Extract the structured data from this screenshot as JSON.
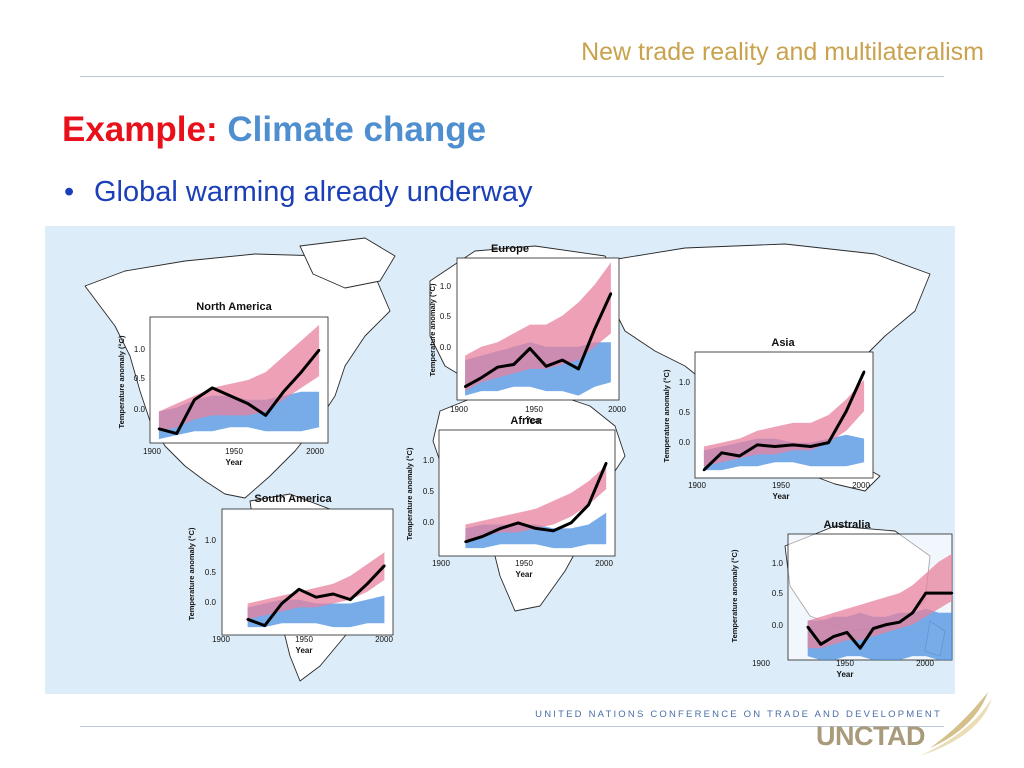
{
  "header": {
    "title": "New trade reality and multilateralism"
  },
  "slide": {
    "title_prefix": "Example:",
    "title_topic": "Climate change",
    "bullet": "Global warming already underway"
  },
  "footer": {
    "org_text": "UNITED NATIONS CONFERENCE ON TRADE AND DEVELOPMENT",
    "logo": "UNCTAD"
  },
  "colors": {
    "header": "#c9a24e",
    "title_prefix": "#e8101a",
    "title_topic": "#4f8fd0",
    "bullet": "#1a3fb8",
    "ocean": "#dcecf8",
    "land": "#ffffff",
    "observed": "#000000",
    "natural_band": "#4a90e2",
    "natural_and_human_band": "#e8829e"
  },
  "chart_data": [
    {
      "type": "line",
      "title": "Europe",
      "xlabel": "Year",
      "ylabel": "Temperature anomaly (°C)",
      "xlim": [
        1900,
        2000
      ],
      "ylim": [
        -0.3,
        1.3
      ],
      "x_ticks": [
        "1900",
        "1950",
        "2000"
      ],
      "y_ticks": [
        "0.0",
        "0.5",
        "1.0"
      ],
      "x": [
        1905,
        1915,
        1925,
        1935,
        1945,
        1955,
        1965,
        1975,
        1985,
        1995
      ],
      "observed": [
        -0.15,
        -0.05,
        0.07,
        0.1,
        0.28,
        0.08,
        0.15,
        0.05,
        0.5,
        0.9
      ],
      "natural_band_low": [
        -0.25,
        -0.2,
        -0.2,
        -0.15,
        -0.15,
        -0.2,
        -0.2,
        -0.25,
        -0.15,
        -0.1
      ],
      "natural_band_high": [
        0.15,
        0.2,
        0.25,
        0.3,
        0.35,
        0.3,
        0.3,
        0.3,
        0.35,
        0.35
      ],
      "combined_band_low": [
        -0.2,
        -0.1,
        -0.05,
        0.0,
        0.05,
        0.05,
        0.1,
        0.15,
        0.3,
        0.45
      ],
      "combined_band_high": [
        0.2,
        0.3,
        0.35,
        0.45,
        0.55,
        0.55,
        0.65,
        0.8,
        1.0,
        1.25
      ]
    },
    {
      "type": "line",
      "title": "North America",
      "xlabel": "Year",
      "ylabel": "Temperature anomaly (°C)",
      "xlim": [
        1900,
        2000
      ],
      "ylim": [
        -0.3,
        1.3
      ],
      "x_ticks": [
        "1900",
        "1950",
        "2000"
      ],
      "y_ticks": [
        "0.0",
        "0.5",
        "1.0"
      ],
      "x": [
        1905,
        1915,
        1925,
        1935,
        1945,
        1955,
        1965,
        1975,
        1985,
        1995
      ],
      "observed": [
        -0.12,
        -0.18,
        0.25,
        0.4,
        0.3,
        0.2,
        0.05,
        0.35,
        0.6,
        0.88
      ],
      "natural_band_low": [
        -0.25,
        -0.2,
        -0.15,
        -0.15,
        -0.1,
        -0.1,
        -0.15,
        -0.15,
        -0.15,
        -0.1
      ],
      "natural_band_high": [
        0.1,
        0.15,
        0.25,
        0.3,
        0.3,
        0.25,
        0.25,
        0.3,
        0.35,
        0.35
      ],
      "combined_band_low": [
        -0.15,
        -0.1,
        0.0,
        0.05,
        0.05,
        0.05,
        0.1,
        0.25,
        0.4,
        0.55
      ],
      "combined_band_high": [
        0.1,
        0.2,
        0.3,
        0.4,
        0.45,
        0.5,
        0.6,
        0.8,
        1.0,
        1.2
      ]
    },
    {
      "type": "line",
      "title": "Asia",
      "xlabel": "Year",
      "ylabel": "Temperature anomaly (°C)",
      "xlim": [
        1900,
        2000
      ],
      "ylim": [
        -0.3,
        1.3
      ],
      "x_ticks": [
        "1900",
        "1950",
        "2000"
      ],
      "y_ticks": [
        "0.0",
        "0.5",
        "1.0"
      ],
      "x": [
        1905,
        1915,
        1925,
        1935,
        1945,
        1955,
        1965,
        1975,
        1985,
        1995
      ],
      "observed": [
        -0.2,
        0.02,
        -0.02,
        0.12,
        0.1,
        0.12,
        0.1,
        0.15,
        0.55,
        1.05
      ],
      "natural_band_low": [
        -0.2,
        -0.2,
        -0.15,
        -0.15,
        -0.1,
        -0.1,
        -0.15,
        -0.15,
        -0.15,
        -0.1
      ],
      "natural_band_high": [
        0.05,
        0.1,
        0.15,
        0.2,
        0.2,
        0.15,
        0.15,
        0.2,
        0.25,
        0.2
      ],
      "combined_band_low": [
        -0.15,
        -0.1,
        -0.05,
        0.0,
        0.0,
        0.05,
        0.05,
        0.15,
        0.3,
        0.55
      ],
      "combined_band_high": [
        0.1,
        0.15,
        0.2,
        0.3,
        0.35,
        0.4,
        0.4,
        0.5,
        0.7,
        0.95
      ]
    },
    {
      "type": "line",
      "title": "Africa",
      "xlabel": "Year",
      "ylabel": "Temperature anomaly (°C)",
      "xlim": [
        1900,
        2000
      ],
      "ylim": [
        -0.3,
        1.3
      ],
      "x_ticks": [
        "1900",
        "1950",
        "2000"
      ],
      "y_ticks": [
        "0.0",
        "0.5",
        "1.0"
      ],
      "x": [
        1915,
        1925,
        1935,
        1945,
        1955,
        1965,
        1975,
        1985,
        1995
      ],
      "observed": [
        -0.12,
        -0.05,
        0.05,
        0.12,
        0.05,
        0.02,
        0.12,
        0.35,
        0.88
      ],
      "natural_band_low": [
        -0.2,
        -0.2,
        -0.15,
        -0.15,
        -0.15,
        -0.2,
        -0.2,
        -0.15,
        -0.15
      ],
      "natural_band_high": [
        0.05,
        0.1,
        0.1,
        0.1,
        0.1,
        0.05,
        0.05,
        0.1,
        0.25
      ],
      "combined_band_low": [
        -0.1,
        -0.05,
        0.0,
        0.0,
        0.05,
        0.1,
        0.2,
        0.35,
        0.55
      ],
      "combined_band_high": [
        0.1,
        0.15,
        0.2,
        0.25,
        0.3,
        0.4,
        0.5,
        0.65,
        0.85
      ]
    },
    {
      "type": "line",
      "title": "South America",
      "xlabel": "Year",
      "ylabel": "Temperature anomaly (°C)",
      "xlim": [
        1900,
        2000
      ],
      "ylim": [
        -0.3,
        1.3
      ],
      "x_ticks": [
        "1900",
        "1950",
        "2000"
      ],
      "y_ticks": [
        "0.0",
        "0.5",
        "1.0"
      ],
      "x": [
        1915,
        1925,
        1935,
        1945,
        1955,
        1965,
        1975,
        1985,
        1995
      ],
      "observed": [
        -0.1,
        -0.18,
        0.1,
        0.28,
        0.18,
        0.22,
        0.15,
        0.35,
        0.58
      ],
      "natural_band_low": [
        -0.2,
        -0.2,
        -0.15,
        -0.15,
        -0.15,
        -0.2,
        -0.2,
        -0.15,
        -0.15
      ],
      "natural_band_high": [
        0.05,
        0.1,
        0.15,
        0.15,
        0.1,
        0.1,
        0.1,
        0.15,
        0.2
      ],
      "combined_band_low": [
        -0.1,
        -0.05,
        0.0,
        0.05,
        0.05,
        0.1,
        0.15,
        0.25,
        0.4
      ],
      "combined_band_high": [
        0.1,
        0.15,
        0.2,
        0.25,
        0.3,
        0.35,
        0.45,
        0.6,
        0.75
      ]
    },
    {
      "type": "line",
      "title": "Australia",
      "xlabel": "Year",
      "ylabel": "Temperature anomaly (°C)",
      "xlim": [
        1900,
        2000
      ],
      "ylim": [
        -0.3,
        1.3
      ],
      "x_ticks": [
        "1900",
        "1950",
        "2000"
      ],
      "y_ticks": [
        "0.0",
        "0.5",
        "1.0"
      ],
      "x": [
        1912,
        1920,
        1928,
        1936,
        1944,
        1952,
        1960,
        1968,
        1976,
        1984,
        1992,
        2000
      ],
      "observed": [
        0.12,
        -0.1,
        0.0,
        0.05,
        -0.15,
        0.1,
        0.15,
        0.18,
        0.3,
        0.55,
        0.55,
        0.55
      ],
      "natural_band_low": [
        -0.25,
        -0.3,
        -0.3,
        -0.25,
        -0.25,
        -0.3,
        -0.3,
        -0.3,
        -0.25,
        -0.25,
        -0.3,
        -0.3
      ],
      "natural_band_high": [
        0.2,
        0.2,
        0.25,
        0.25,
        0.3,
        0.25,
        0.25,
        0.3,
        0.3,
        0.35,
        0.3,
        0.3
      ],
      "combined_band_low": [
        -0.15,
        -0.15,
        -0.1,
        -0.05,
        -0.05,
        0.0,
        0.05,
        0.1,
        0.15,
        0.25,
        0.35,
        0.45
      ],
      "combined_band_high": [
        0.2,
        0.25,
        0.3,
        0.35,
        0.4,
        0.45,
        0.5,
        0.55,
        0.65,
        0.8,
        0.95,
        1.05
      ]
    }
  ]
}
